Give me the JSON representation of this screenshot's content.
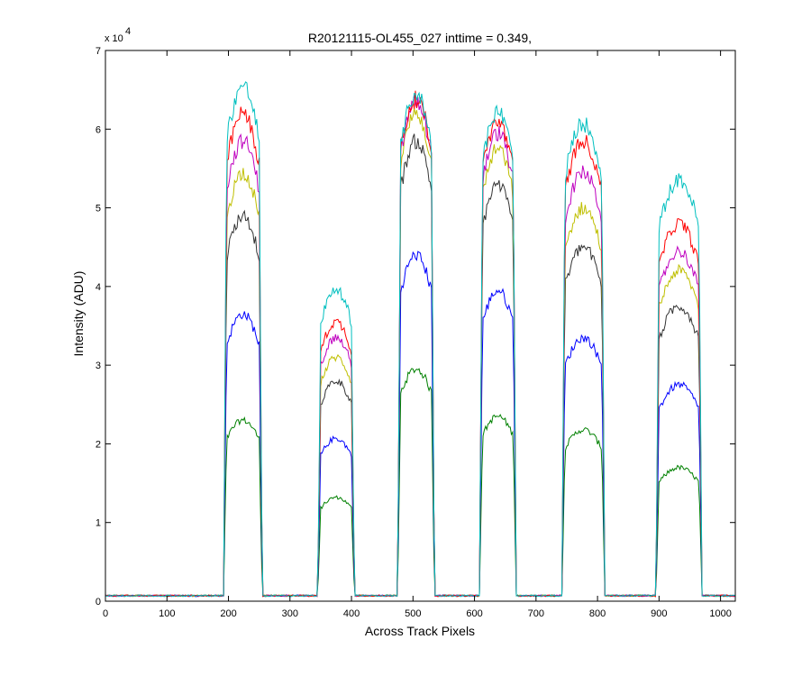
{
  "chart_data": {
    "type": "line",
    "title": "R20121115-OL455_027 inttime = 0.349,",
    "xlabel": "Across Track Pixels",
    "ylabel": "Intensity (ADU)",
    "y_multiplier": "x 10",
    "y_exponent": "4",
    "xlim": [
      0,
      1024
    ],
    "ylim": [
      0,
      7
    ],
    "xticks": [
      0,
      100,
      200,
      300,
      400,
      500,
      600,
      700,
      800,
      900,
      1000
    ],
    "yticks": [
      0,
      1,
      2,
      3,
      4,
      5,
      6,
      7
    ],
    "grid": false,
    "baseline": 0.07,
    "plateaus": [
      {
        "start": 192,
        "end": 255
      },
      {
        "start": 345,
        "end": 405
      },
      {
        "start": 475,
        "end": 535
      },
      {
        "start": 608,
        "end": 668
      },
      {
        "start": 742,
        "end": 812
      },
      {
        "start": 895,
        "end": 970
      }
    ],
    "series": [
      {
        "name": "green",
        "color": "#008000",
        "levels": [
          2.3,
          1.32,
          2.95,
          2.35,
          2.18,
          1.7
        ]
      },
      {
        "name": "blue",
        "color": "#0000ff",
        "levels": [
          3.65,
          2.07,
          4.4,
          3.95,
          3.35,
          2.75
        ]
      },
      {
        "name": "black",
        "color": "#333333",
        "levels": [
          4.9,
          2.8,
          5.85,
          5.3,
          4.5,
          3.75
        ]
      },
      {
        "name": "yellow",
        "color": "#bfbf00",
        "levels": [
          5.45,
          3.1,
          6.2,
          5.75,
          5.0,
          4.2
        ]
      },
      {
        "name": "magenta",
        "color": "#bf00bf",
        "levels": [
          5.85,
          3.35,
          6.35,
          5.95,
          5.45,
          4.45
        ]
      },
      {
        "name": "red",
        "color": "#ff0000",
        "levels": [
          6.2,
          3.55,
          6.38,
          6.1,
          5.85,
          4.8
        ]
      },
      {
        "name": "cyan",
        "color": "#00bfbf",
        "levels": [
          6.55,
          3.95,
          6.45,
          6.22,
          6.07,
          5.35
        ]
      }
    ]
  }
}
